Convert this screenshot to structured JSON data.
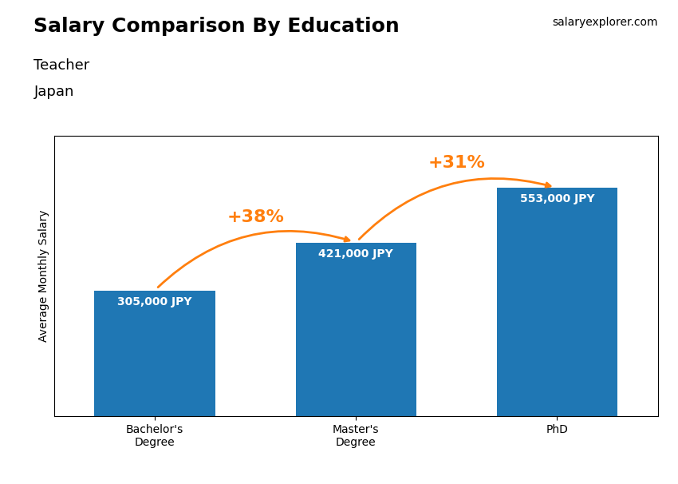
{
  "chart_data": {
    "type": "bar",
    "title": "Salary Comparison By Education",
    "subtitle": [
      "Teacher",
      "Japan"
    ],
    "source": "salaryexplorer.com",
    "y_label": "Average Monthly Salary",
    "categories": [
      "Bachelor's\nDegree",
      "Master's\nDegree",
      "PhD"
    ],
    "values": [
      305000,
      421000,
      553000
    ],
    "value_labels": [
      "305,000 JPY",
      "421,000 JPY",
      "553,000 JPY"
    ],
    "data_labels": true,
    "annotations": [
      "+38%",
      "+31%"
    ],
    "ylim": [
      0,
      680000
    ],
    "yticks": [],
    "tick_labels": "x",
    "grid": false
  }
}
